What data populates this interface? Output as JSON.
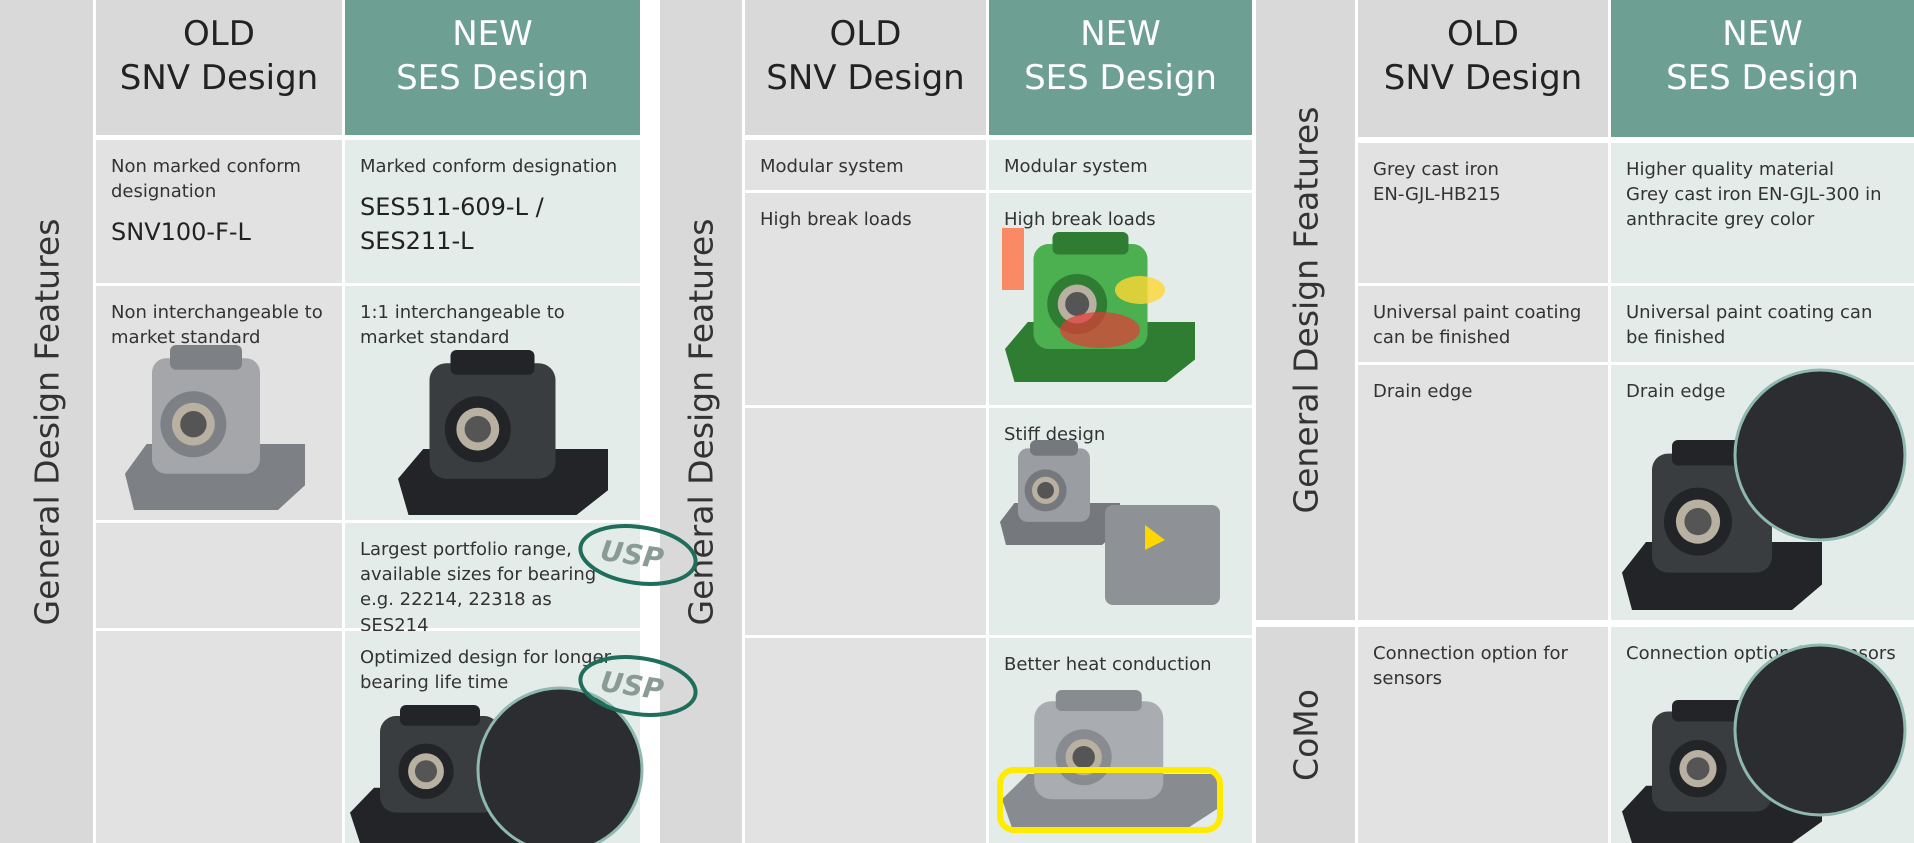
{
  "panels": [
    {
      "header": {
        "old": [
          "OLD",
          "SNV Design"
        ],
        "new": [
          "NEW",
          "SES Design"
        ]
      },
      "sections": [
        {
          "side": "General Design Features",
          "rows": [
            {
              "old": {
                "lines": [
                  "Non marked conform designation"
                ],
                "code": "SNV100-F-L"
              },
              "new": {
                "lines": [
                  "Marked conform designation"
                ],
                "code": "SES511-609-L / SES211-L"
              }
            },
            {
              "old": {
                "lines": [
                  "Non interchangeable to market standard"
                ]
              },
              "new": {
                "lines": [
                  "1:1 interchangeable to market standard"
                ]
              }
            },
            {
              "new": {
                "lines": [
                  "Largest portfolio range, available sizes for bearing e.g. 22214, 22318 as SES214"
                ],
                "badge": "USP"
              }
            },
            {
              "new": {
                "lines": [
                  "Optimized design for longer bearing life time"
                ],
                "badge": "USP"
              }
            }
          ]
        }
      ]
    },
    {
      "header": {
        "old": [
          "OLD",
          "SNV Design"
        ],
        "new": [
          "NEW",
          "SES Design"
        ]
      },
      "sections": [
        {
          "side": "General Design Features",
          "rows": [
            {
              "old": {
                "lines": [
                  "Modular system"
                ]
              },
              "new": {
                "lines": [
                  "Modular system"
                ]
              }
            },
            {
              "old": {
                "lines": [
                  "High break loads"
                ]
              },
              "new": {
                "lines": [
                  "High break loads"
                ]
              }
            },
            {
              "new": {
                "lines": [
                  "Stiff design"
                ]
              }
            },
            {
              "new": {
                "lines": [
                  "Better heat conduction"
                ]
              }
            }
          ]
        }
      ]
    },
    {
      "header": {
        "old": [
          "OLD",
          "SNV Design"
        ],
        "new": [
          "NEW",
          "SES Design"
        ]
      },
      "sections": [
        {
          "side": "General Design Features",
          "rows": [
            {
              "old": {
                "lines": [
                  "Grey cast iron",
                  "EN-GJL-HB215"
                ]
              },
              "new": {
                "lines": [
                  "Higher quality material",
                  "Grey cast iron EN-GJL-300 in anthracite grey color"
                ]
              }
            },
            {
              "old": {
                "lines": [
                  "Universal paint coating can be finished"
                ]
              },
              "new": {
                "lines": [
                  "Universal paint coating can be finished"
                ]
              }
            },
            {
              "old": {
                "lines": [
                  "Drain edge"
                ]
              },
              "new": {
                "lines": [
                  "Drain edge"
                ]
              }
            }
          ]
        },
        {
          "side": "CoMo",
          "rows": [
            {
              "old": {
                "lines": [
                  "Connection option for sensors"
                ]
              },
              "new": {
                "lines": [
                  "Connection option for sensors"
                ]
              }
            }
          ]
        }
      ]
    }
  ]
}
